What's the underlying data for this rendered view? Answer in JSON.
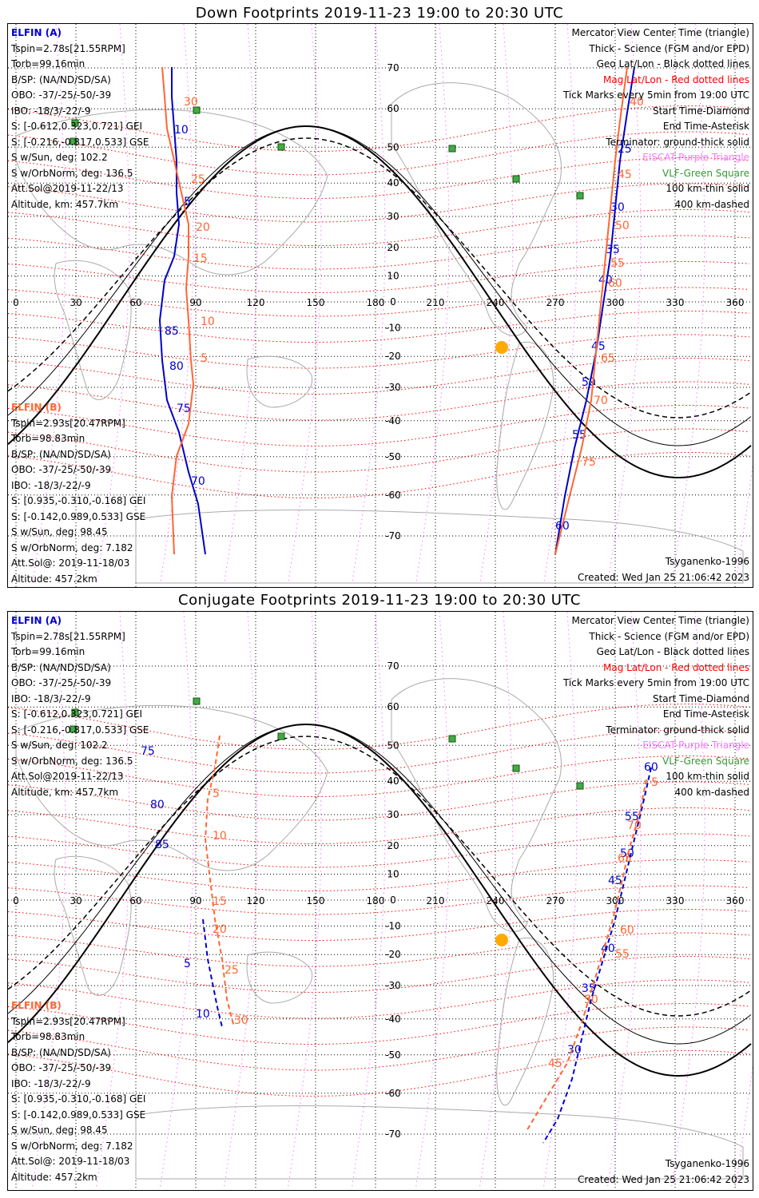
{
  "panels": [
    {
      "title": "Down Footprints 2019-11-23 19:00 to 20:30 UTC",
      "kind": "down"
    },
    {
      "title": "Conjugate Footprints 2019-11-23 19:00 to 20:30 UTC",
      "kind": "conjugate"
    }
  ],
  "elfin_a": {
    "header": "ELFIN (A)",
    "lines": [
      "Tspin=2.78s[21.55RPM]",
      "Torb=99.16min",
      "B/SP: (NA/ND/SD/SA)",
      "OBO: -37/-25/-50/-39",
      "IBO: -18/3/-22/-9",
      "S: [-0.612,0.323,0.721] GEI",
      "S: [-0.216,-0.817,0.533] GSE",
      "S w/Sun, deg: 102.2",
      "S w/OrbNorm, deg: 136.5",
      "Att.Sol@2019-11-22/13",
      "Altitude, km: 457.7km"
    ]
  },
  "elfin_b": {
    "header": "ELFIN (B)",
    "lines": [
      "Tspin=2.93s[20.47RPM]",
      "Torb=98.83min",
      "B/SP: (NA/ND/SD/SA)",
      "OBO: -37/-25/-50/-39",
      "IBO: -18/3/-22/-9",
      "S: [0.935,-0.310,-0.168] GEI",
      "S: [-0.142,0.989,0.533] GSE",
      "S w/Sun, deg: 98.45",
      "S w/OrbNorm, deg: 7.182",
      "Att.Sol@: 2019-11-18/03",
      "Altitude: 457.2km"
    ]
  },
  "legend": [
    {
      "text": "Mercator View Center Time (triangle)",
      "color": "#000000"
    },
    {
      "text": "Thick - Science (FGM and/or EPD)",
      "color": "#000000"
    },
    {
      "text": "Geo Lat/Lon - Black dotted lines",
      "color": "#000000"
    },
    {
      "text": "Mag Lat/Lon - Red dotted lines",
      "color": "#ff0000"
    },
    {
      "text": "Tick Marks every 5min from 19:00 UTC",
      "color": "#000000"
    },
    {
      "text": "Start Time-Diamond",
      "color": "#000000"
    },
    {
      "text": "End Time-Asterisk",
      "color": "#000000"
    },
    {
      "text": "Terminator: ground-thick solid",
      "color": "#000000"
    },
    {
      "text": "EISCAT-Purple Triangle",
      "color": "#ff77ff"
    },
    {
      "text": "VLF-Green Square",
      "color": "#339933"
    },
    {
      "text": "100 km-thin solid",
      "color": "#000000"
    },
    {
      "text": "400 km-dashed",
      "color": "#000000"
    }
  ],
  "model": "Tsyganenko-1996",
  "created": "Created: Wed Jan 25 21:06:42 2023",
  "lon_labels": [
    "0",
    "30",
    "60",
    "90",
    "120",
    "150",
    "180",
    "210",
    "240",
    "270",
    "300",
    "330",
    "360"
  ],
  "lat_labels": [
    "70",
    "60",
    "50",
    "40",
    "30",
    "20",
    "10",
    "0",
    "-10",
    "-20",
    "-30",
    "-40",
    "-50",
    "-60",
    "-70"
  ],
  "colors": {
    "elfin_a": "#0000cc",
    "elfin_b": "#ff6633",
    "mag_grid": "#ff0000",
    "geo_grid": "#000000",
    "eiscat": "#ff77ff",
    "vlf": "#339933",
    "subsolar": "#ffaa00"
  },
  "tracks": {
    "down": {
      "a_left": {
        "pts": [
          [
            65,
            83
          ],
          [
            65,
            120
          ],
          [
            66,
            160
          ],
          [
            67,
            200
          ],
          [
            67,
            240
          ],
          [
            68,
            280
          ],
          [
            66,
            320
          ],
          [
            62,
            350
          ],
          [
            60,
            400
          ],
          [
            61,
            450
          ],
          [
            63,
            500
          ],
          [
            68,
            540
          ],
          [
            72,
            590
          ],
          [
            76,
            630
          ],
          [
            79,
            693
          ]
        ],
        "labels": [
          [
            "10",
            66,
            166
          ],
          [
            "5",
            70,
            256
          ],
          [
            "85",
            62,
            418
          ],
          [
            "80",
            64,
            462
          ],
          [
            "75",
            67,
            515
          ],
          [
            "70",
            73,
            606
          ]
        ]
      },
      "b_left": {
        "pts": [
          [
            61,
            83
          ],
          [
            62,
            120
          ],
          [
            63,
            160
          ],
          [
            66,
            200
          ],
          [
            69,
            240
          ],
          [
            72,
            280
          ],
          [
            72,
            320
          ],
          [
            71,
            360
          ],
          [
            72,
            400
          ],
          [
            73,
            450
          ],
          [
            74,
            480
          ],
          [
            72,
            530
          ],
          [
            67,
            570
          ],
          [
            65,
            620
          ],
          [
            66,
            693
          ]
        ],
        "labels": [
          [
            "30",
            70,
            131
          ],
          [
            "25",
            73,
            228
          ],
          [
            "20",
            75,
            288
          ],
          [
            "15",
            74,
            327
          ],
          [
            "10",
            77,
            406
          ],
          [
            "5",
            77,
            452
          ]
        ]
      },
      "a_right": {
        "pts": [
          [
            258,
            83
          ],
          [
            255,
            140
          ],
          [
            252,
            200
          ],
          [
            250,
            260
          ],
          [
            248,
            320
          ],
          [
            245,
            380
          ],
          [
            242,
            440
          ],
          [
            238,
            500
          ],
          [
            233,
            560
          ],
          [
            229,
            620
          ],
          [
            225,
            693
          ]
        ],
        "labels": [
          [
            "25",
            251,
            190
          ],
          [
            "30",
            248,
            263
          ],
          [
            "35",
            246,
            316
          ],
          [
            "40",
            243,
            354
          ],
          [
            "45",
            240,
            437
          ],
          [
            "50",
            236,
            482
          ],
          [
            "55",
            232,
            548
          ],
          [
            "60",
            225,
            662
          ]
        ]
      },
      "b_right": {
        "pts": [
          [
            255,
            83
          ],
          [
            252,
            150
          ],
          [
            250,
            200
          ],
          [
            248,
            260
          ],
          [
            246,
            320
          ],
          [
            244,
            380
          ],
          [
            242,
            440
          ],
          [
            240,
            500
          ],
          [
            236,
            560
          ],
          [
            231,
            620
          ],
          [
            225,
            693
          ]
        ],
        "labels": [
          [
            "40",
            256,
            131
          ],
          [
            "45",
            251,
            222
          ],
          [
            "50",
            250,
            286
          ],
          [
            "55",
            248,
            333
          ],
          [
            "60",
            247,
            358
          ],
          [
            "65",
            244,
            452
          ],
          [
            "70",
            241,
            505
          ],
          [
            "75",
            236,
            582
          ]
        ]
      }
    },
    "conjugate": {
      "a_left": {
        "pts": [
          [
            48,
            126
          ],
          [
            50,
            160
          ],
          [
            51,
            190
          ],
          [
            52,
            230
          ],
          [
            56,
            270
          ],
          [
            57,
            320
          ],
          [
            60,
            370
          ]
        ],
        "labels": [
          [
            "75",
            52,
            944
          ],
          [
            "80",
            56,
            1011
          ],
          [
            "85",
            58,
            1061
          ]
        ]
      },
      "b_left": {
        "pts": [
          [
            85,
            920
          ],
          [
            83,
            960
          ],
          [
            80,
            1000
          ],
          [
            79,
            1050
          ],
          [
            81,
            1100
          ],
          [
            83,
            1150
          ],
          [
            86,
            1200
          ],
          [
            88,
            1250
          ],
          [
            91,
            1285
          ]
        ],
        "labels": [
          [
            "5",
            82,
            997
          ],
          [
            "10",
            82,
            1050
          ],
          [
            "15",
            82,
            1132
          ],
          [
            "20",
            82,
            1167
          ],
          [
            "25",
            87,
            1218
          ],
          [
            "30",
            91,
            1281
          ]
        ]
      },
      "a_left2": {
        "pts": [
          [
            78,
            1150
          ],
          [
            80,
            1200
          ],
          [
            82,
            1230
          ],
          [
            84,
            1260
          ],
          [
            86,
            1285
          ]
        ],
        "labels": [
          [
            "5",
            70,
            1210
          ],
          [
            "10",
            75,
            1273
          ]
        ]
      },
      "a_right": {
        "pts": [
          [
            265,
            960
          ],
          [
            262,
            1000
          ],
          [
            258,
            1050
          ],
          [
            254,
            1100
          ],
          [
            250,
            1150
          ],
          [
            245,
            1200
          ],
          [
            240,
            1250
          ],
          [
            236,
            1300
          ],
          [
            232,
            1350
          ],
          [
            226,
            1400
          ],
          [
            220,
            1430
          ]
        ],
        "labels": [
          [
            "60",
            262,
            964
          ],
          [
            "55",
            254,
            1026
          ],
          [
            "50",
            252,
            1072
          ],
          [
            "45",
            247,
            1106
          ],
          [
            "40",
            244,
            1191
          ],
          [
            "35",
            236,
            1241
          ],
          [
            "30",
            230,
            1318
          ]
        ]
      },
      "b_right": {
        "pts": [
          [
            263,
            975
          ],
          [
            260,
            1020
          ],
          [
            256,
            1060
          ],
          [
            253,
            1100
          ],
          [
            249,
            1150
          ],
          [
            245,
            1190
          ],
          [
            240,
            1240
          ],
          [
            236,
            1280
          ],
          [
            230,
            1330
          ],
          [
            220,
            1380
          ],
          [
            213,
            1415
          ]
        ],
        "labels": [
          [
            "5",
            265,
            983
          ],
          [
            "70",
            255,
            1037
          ],
          [
            "65",
            251,
            1078
          ],
          [
            "60",
            252,
            1168
          ],
          [
            "55",
            250,
            1198
          ],
          [
            "50",
            237,
            1255
          ],
          [
            "45",
            222,
            1335
          ]
        ]
      }
    }
  }
}
